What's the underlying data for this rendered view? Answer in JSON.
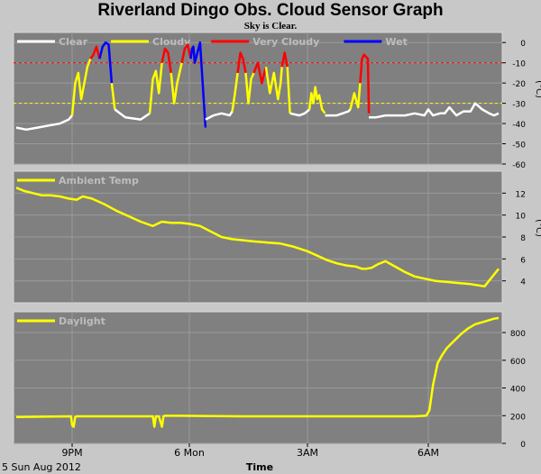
{
  "title": "Riverland Dingo Obs. Cloud Sensor Graph",
  "subtitle": "Sky is Clear.",
  "footer": {
    "date": "5 Sun Aug 2012",
    "x_axis_label": "Time"
  },
  "colors": {
    "background": "#c8c8c8",
    "panel": "#808080",
    "clear": "#ffffff",
    "cloudy": "#ffff00",
    "very_cloudy": "#ff0000",
    "wet": "#0000ff",
    "ambient": "#ffff00",
    "daylight": "#ffff00"
  },
  "x_ticks": [
    "9PM",
    "6 Mon",
    "3AM",
    "6AM"
  ],
  "chart_data": [
    {
      "type": "line",
      "name": "sky-temperature",
      "ylabel": "(°C)",
      "ylim": [
        -60,
        5
      ],
      "yticks": [
        0,
        -10,
        -20,
        -30,
        -40,
        -50,
        -60
      ],
      "thresholds": [
        {
          "value": -10,
          "color": "#ff0000"
        },
        {
          "value": -30,
          "color": "#ffff00"
        }
      ],
      "legend": [
        "Clear",
        "Cloudy",
        "Very Cloudy",
        "Wet"
      ],
      "series": [
        {
          "name": "Clear",
          "color": "#ffffff",
          "x": [
            18.25,
            18.7,
            19.2,
            19.7,
            20.2,
            20.6,
            20.75
          ],
          "y": [
            -42,
            -43,
            -42,
            -41,
            -40,
            -38,
            -36
          ]
        },
        {
          "name": "Cloudy",
          "color": "#ffff00",
          "x": [
            20.75,
            20.85,
            20.95,
            21.05,
            21.15,
            21.25,
            21.35
          ],
          "y": [
            -36,
            -20,
            -15,
            -28,
            -20,
            -12,
            -8
          ]
        },
        {
          "name": "Very Cloudy",
          "color": "#ff0000",
          "x": [
            21.35,
            21.45,
            21.55,
            21.65
          ],
          "y": [
            -8,
            -6,
            -2,
            -8
          ]
        },
        {
          "name": "Wet",
          "color": "#0000ff",
          "x": [
            21.65,
            21.75,
            21.85,
            21.95,
            22.05
          ],
          "y": [
            -8,
            -2,
            0,
            -1,
            -20
          ]
        },
        {
          "name": "Cloudy",
          "color": "#ffff00",
          "x": [
            22.05,
            22.15
          ],
          "y": [
            -20,
            -33
          ]
        },
        {
          "name": "Clear",
          "color": "#ffffff",
          "x": [
            22.15,
            22.5,
            23.0,
            23.3
          ],
          "y": [
            -33,
            -37,
            -38,
            -35
          ]
        },
        {
          "name": "Cloudy",
          "color": "#ffff00",
          "x": [
            23.3,
            23.4,
            23.5,
            23.6,
            23.7
          ],
          "y": [
            -35,
            -18,
            -14,
            -25,
            -10
          ]
        },
        {
          "name": "Very Cloudy",
          "color": "#ff0000",
          "x": [
            23.7,
            23.8,
            23.9,
            24.0
          ],
          "y": [
            -10,
            -3,
            -5,
            -15
          ]
        },
        {
          "name": "Cloudy",
          "color": "#ffff00",
          "x": [
            24.0,
            24.1,
            24.2,
            24.35
          ],
          "y": [
            -15,
            -30,
            -20,
            -10
          ]
        },
        {
          "name": "Very Cloudy",
          "color": "#ff0000",
          "x": [
            24.35,
            24.45,
            24.55,
            24.65
          ],
          "y": [
            -10,
            -3,
            -1,
            -8
          ]
        },
        {
          "name": "Wet",
          "color": "#0000ff",
          "x": [
            24.65,
            24.7,
            24.75,
            24.8,
            24.9,
            25.0,
            25.2
          ],
          "y": [
            -8,
            -3,
            -2,
            -10,
            -5,
            0,
            -42
          ]
        },
        {
          "name": "Clear",
          "color": "#ffffff",
          "x": [
            25.2,
            25.5,
            25.8,
            26.1,
            26.2
          ],
          "y": [
            -38,
            -36,
            -35,
            -36,
            -34
          ]
        },
        {
          "name": "Cloudy",
          "color": "#ffff00",
          "x": [
            26.2,
            26.3,
            26.4
          ],
          "y": [
            -34,
            -25,
            -15
          ]
        },
        {
          "name": "Very Cloudy",
          "color": "#ff0000",
          "x": [
            26.4,
            26.5,
            26.6,
            26.7
          ],
          "y": [
            -15,
            -5,
            -8,
            -15
          ]
        },
        {
          "name": "Cloudy",
          "color": "#ffff00",
          "x": [
            26.7,
            26.8,
            26.9,
            27.0
          ],
          "y": [
            -15,
            -30,
            -18,
            -15
          ]
        },
        {
          "name": "Very Cloudy",
          "color": "#ff0000",
          "x": [
            27.0,
            27.15,
            27.3,
            27.45
          ],
          "y": [
            -15,
            -10,
            -20,
            -12
          ]
        },
        {
          "name": "Cloudy",
          "color": "#ffff00",
          "x": [
            27.45,
            27.6,
            27.75,
            27.9,
            28.0,
            28.05
          ],
          "y": [
            -12,
            -25,
            -15,
            -28,
            -20,
            -12
          ]
        },
        {
          "name": "Very Cloudy",
          "color": "#ff0000",
          "x": [
            28.05,
            28.15,
            28.25
          ],
          "y": [
            -12,
            -5,
            -12
          ]
        },
        {
          "name": "Cloudy",
          "color": "#ffff00",
          "x": [
            28.25,
            28.35
          ],
          "y": [
            -12,
            -35
          ]
        },
        {
          "name": "Clear",
          "color": "#ffffff",
          "x": [
            28.35,
            28.7,
            28.9,
            29.1
          ],
          "y": [
            -35,
            -36,
            -35,
            -33
          ]
        },
        {
          "name": "Cloudy",
          "color": "#ffff00",
          "x": [
            29.1,
            29.2,
            29.3,
            29.4,
            29.5,
            29.6,
            29.75,
            29.9
          ],
          "y": [
            -33,
            -25,
            -30,
            -22,
            -28,
            -26,
            -33,
            -35
          ]
        },
        {
          "name": "Clear",
          "color": "#ffffff",
          "x": [
            29.9,
            30.5,
            31.1,
            31.2
          ],
          "y": [
            -36,
            -36,
            -34,
            -33
          ]
        },
        {
          "name": "Cloudy",
          "color": "#ffff00",
          "x": [
            31.2,
            31.4,
            31.6,
            31.7
          ],
          "y": [
            -33,
            -25,
            -32,
            -20
          ]
        },
        {
          "name": "Very Cloudy",
          "color": "#ff0000",
          "x": [
            31.7,
            31.8,
            31.9,
            32.1,
            32.15
          ],
          "y": [
            -20,
            -8,
            -6,
            -8,
            -35
          ]
        },
        {
          "name": "Clear",
          "color": "#ffffff",
          "x": [
            32.15,
            32.5,
            33.0,
            33.5,
            34.0,
            34.5,
            35.0,
            35.2,
            35.4,
            35.7,
            35.9,
            36.1,
            36.4,
            36.7,
            37.0,
            37.2,
            37.5,
            37.8,
            38.0,
            38.2
          ],
          "y": [
            -37,
            -37,
            -36,
            -36,
            -36,
            -35,
            -36,
            -33,
            -36,
            -35,
            -35,
            -32,
            -36,
            -34,
            -34,
            -30,
            -33,
            -35,
            -36,
            -35
          ]
        }
      ]
    },
    {
      "type": "line",
      "name": "ambient-temperature",
      "ylabel": "(°C)",
      "ylim": [
        2,
        14
      ],
      "yticks": [
        12,
        10,
        8,
        6,
        4
      ],
      "legend": [
        "Ambient Temp"
      ],
      "series": [
        {
          "name": "Ambient Temp",
          "color": "#ffff00",
          "x": [
            18.25,
            18.6,
            19.0,
            19.4,
            19.8,
            20.2,
            20.6,
            20.9,
            21.1,
            21.4,
            21.8,
            22.2,
            22.6,
            23.0,
            23.4,
            23.7,
            24.0,
            24.3,
            24.6,
            25.0,
            25.4,
            25.8,
            26.2,
            26.6,
            27.0,
            27.5,
            28.0,
            28.5,
            29.0,
            29.5,
            30.0,
            30.5,
            31.0,
            31.5,
            31.8,
            32.0,
            32.3,
            32.6,
            33.0,
            33.5,
            34.0,
            34.5,
            35.0,
            35.5,
            36.0,
            36.5,
            37.0,
            37.3,
            37.6,
            38.2
          ],
          "y": [
            12.5,
            12.2,
            12.0,
            11.8,
            11.8,
            11.7,
            11.5,
            11.4,
            11.7,
            11.5,
            11.0,
            10.4,
            9.9,
            9.4,
            9.0,
            9.4,
            9.3,
            9.3,
            9.2,
            9.0,
            8.5,
            8.0,
            7.8,
            7.7,
            7.6,
            7.5,
            7.4,
            7.1,
            6.7,
            6.3,
            5.9,
            5.6,
            5.4,
            5.3,
            5.1,
            5.1,
            5.2,
            5.5,
            5.8,
            5.3,
            4.8,
            4.4,
            4.2,
            4.0,
            3.9,
            3.8,
            3.7,
            3.6,
            3.5,
            5.1
          ]
        }
      ]
    },
    {
      "type": "line",
      "name": "daylight",
      "ylabel": "",
      "ylim": [
        0,
        950
      ],
      "yticks": [
        800,
        600,
        400,
        200,
        0
      ],
      "legend": [
        "Daylight"
      ],
      "series": [
        {
          "name": "Daylight",
          "color": "#ffff00",
          "x": [
            18.25,
            20.7,
            20.75,
            20.8,
            20.85,
            20.9,
            23.4,
            23.45,
            23.5,
            23.6,
            23.7,
            23.75,
            23.8,
            26.5,
            29.5,
            32.0,
            34.5,
            35.1,
            35.25,
            35.4,
            35.6,
            35.8,
            36.0,
            36.3,
            36.6,
            36.9,
            37.2,
            37.6,
            38.0,
            38.2
          ],
          "y": [
            190,
            195,
            130,
            120,
            190,
            195,
            195,
            120,
            195,
            195,
            120,
            195,
            200,
            195,
            195,
            195,
            195,
            200,
            240,
            420,
            580,
            640,
            690,
            740,
            790,
            830,
            860,
            880,
            900,
            905
          ]
        }
      ]
    }
  ]
}
